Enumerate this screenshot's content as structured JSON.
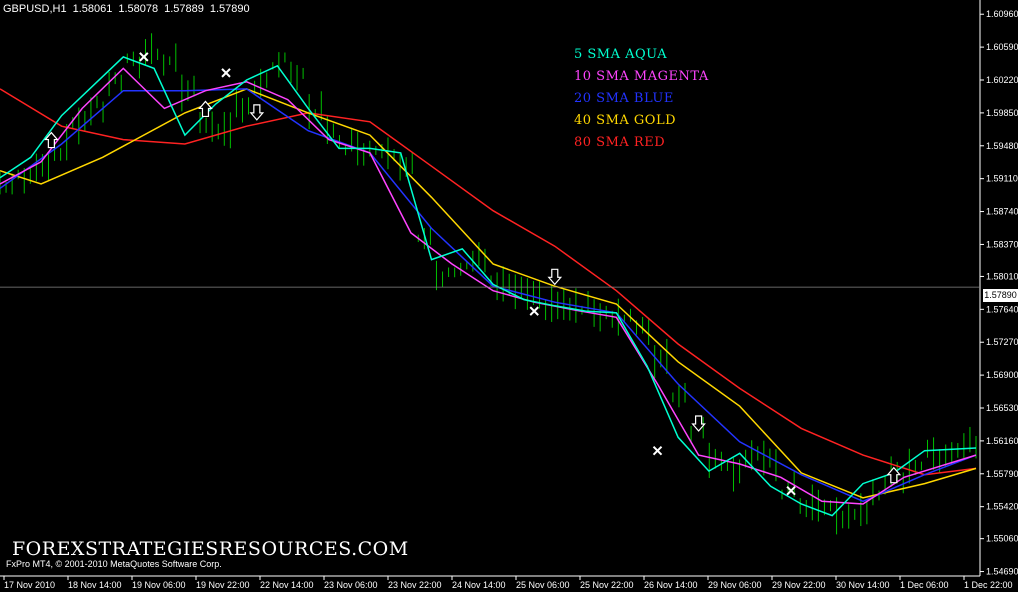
{
  "header": {
    "symbol": "GBPUSD,H1",
    "open": "1.58061",
    "high": "1.58078",
    "low": "1.57889",
    "close": "1.57890"
  },
  "legend": [
    {
      "label": "5 SMA AQUA",
      "color": "#00ffd0"
    },
    {
      "label": "10 SMA MAGENTA",
      "color": "#ff44ff"
    },
    {
      "label": "20 SMA BLUE",
      "color": "#2233ff"
    },
    {
      "label": "40 SMA GOLD",
      "color": "#ffd700"
    },
    {
      "label": "80 SMA RED",
      "color": "#ff2222"
    }
  ],
  "watermark": "FOREXSTRATEGIESRESOURCES.COM",
  "copyright": "FxPro MT4, © 2001-2010 MetaQuotes Software Corp.",
  "current_price_tag": "1.57890",
  "colors": {
    "background": "#000000",
    "bars": "#00c000",
    "axis": "#ffffff",
    "grid": "#555555"
  },
  "chart_data": {
    "type": "line",
    "price_axis": [
      "1.60960",
      "1.60590",
      "1.60220",
      "1.59850",
      "1.59480",
      "1.59110",
      "1.58740",
      "1.58370",
      "1.58010",
      "1.57640",
      "1.57270",
      "1.56900",
      "1.56530",
      "1.56160",
      "1.55790",
      "1.55420",
      "1.55060",
      "1.54690"
    ],
    "time_axis": [
      "17 Nov 2010",
      "18 Nov 14:00",
      "19 Nov 06:00",
      "19 Nov 22:00",
      "22 Nov 14:00",
      "23 Nov 06:00",
      "23 Nov 22:00",
      "24 Nov 14:00",
      "25 Nov 06:00",
      "25 Nov 22:00",
      "26 Nov 14:00",
      "29 Nov 06:00",
      "29 Nov 22:00",
      "30 Nov 14:00",
      "1 Dec 06:00",
      "1 Dec 22:00"
    ],
    "ylim": [
      1.5464,
      1.6112
    ],
    "series": [
      {
        "name": "5 SMA AQUA",
        "color": "#00ffd0",
        "x": [
          0,
          3,
          6,
          9,
          12,
          15,
          18,
          21,
          24,
          27,
          30,
          33,
          36,
          39,
          42,
          45,
          48,
          51,
          54,
          57,
          60,
          63,
          66,
          69,
          72,
          75,
          78,
          81,
          84,
          87,
          90,
          95
        ],
        "y": [
          1.5912,
          1.5935,
          1.5982,
          1.6015,
          1.6048,
          1.6035,
          1.596,
          1.5995,
          1.6022,
          1.6038,
          1.599,
          1.5945,
          1.5945,
          1.594,
          1.582,
          1.5832,
          1.5792,
          1.5775,
          1.5768,
          1.5762,
          1.576,
          1.57,
          1.562,
          1.5582,
          1.5602,
          1.5565,
          1.5545,
          1.5532,
          1.5568,
          1.558,
          1.5605,
          1.5608
        ]
      },
      {
        "name": "10 SMA MAGENTA",
        "color": "#ff44ff",
        "x": [
          0,
          4,
          8,
          12,
          16,
          20,
          24,
          28,
          32,
          36,
          40,
          44,
          48,
          52,
          56,
          60,
          64,
          68,
          72,
          76,
          80,
          84,
          88,
          95
        ],
        "y": [
          1.5905,
          1.593,
          1.599,
          1.6035,
          1.599,
          1.601,
          1.602,
          1.6,
          1.5955,
          1.594,
          1.585,
          1.5815,
          1.5785,
          1.5772,
          1.5763,
          1.5755,
          1.568,
          1.56,
          1.559,
          1.5575,
          1.5548,
          1.5545,
          1.5575,
          1.56
        ]
      },
      {
        "name": "20 SMA BLUE",
        "color": "#2233ff",
        "x": [
          0,
          6,
          12,
          18,
          24,
          30,
          36,
          42,
          48,
          54,
          60,
          66,
          72,
          78,
          84,
          90,
          95
        ],
        "y": [
          1.59,
          1.595,
          1.601,
          1.601,
          1.6012,
          1.5965,
          1.594,
          1.5855,
          1.579,
          1.5772,
          1.576,
          1.568,
          1.5615,
          1.5578,
          1.5548,
          1.5578,
          1.56
        ]
      },
      {
        "name": "40 SMA GOLD",
        "color": "#ffd700",
        "x": [
          0,
          4,
          10,
          18,
          24,
          30,
          36,
          42,
          48,
          54,
          60,
          66,
          72,
          78,
          84,
          90,
          95
        ],
        "y": [
          1.592,
          1.5905,
          1.5935,
          1.5985,
          1.6012,
          1.5985,
          1.596,
          1.589,
          1.5815,
          1.579,
          1.577,
          1.5705,
          1.5655,
          1.558,
          1.5552,
          1.5568,
          1.5585
        ]
      },
      {
        "name": "80 SMA RED",
        "color": "#ff2222",
        "x": [
          0,
          6,
          12,
          18,
          24,
          30,
          36,
          42,
          48,
          54,
          60,
          66,
          72,
          78,
          84,
          90,
          95
        ],
        "y": [
          1.6012,
          1.597,
          1.5955,
          1.595,
          1.597,
          1.5985,
          1.5975,
          1.5925,
          1.5875,
          1.5835,
          1.5785,
          1.5725,
          1.5675,
          1.563,
          1.56,
          1.5578,
          1.5585
        ]
      }
    ],
    "bars_close": [
      1.5905,
      1.591,
      1.593,
      1.5945,
      1.5975,
      1.599,
      1.602,
      1.604,
      1.6055,
      1.6045,
      1.601,
      1.5975,
      1.596,
      1.5995,
      1.6015,
      1.604,
      1.6025,
      1.599,
      1.596,
      1.595,
      1.5945,
      1.5945,
      1.593,
      1.584,
      1.58,
      1.5812,
      1.582,
      1.579,
      1.5785,
      1.5775,
      1.577,
      1.5765,
      1.5765,
      1.576,
      1.5755,
      1.574,
      1.571,
      1.567,
      1.563,
      1.56,
      1.5585,
      1.56,
      1.559,
      1.556,
      1.5545,
      1.554,
      1.553,
      1.5535,
      1.556,
      1.5575,
      1.559,
      1.56,
      1.5605,
      1.5615
    ],
    "arrows_up": [
      {
        "x": 5,
        "y": 1.5955
      },
      {
        "x": 20,
        "y": 1.599
      },
      {
        "x": 87,
        "y": 1.5578
      }
    ],
    "arrows_down": [
      {
        "x": 25,
        "y": 1.5985
      },
      {
        "x": 54,
        "y": 1.58
      },
      {
        "x": 68,
        "y": 1.5635
      }
    ],
    "crosses": [
      {
        "x": 14,
        "y": 1.6048
      },
      {
        "x": 22,
        "y": 1.603
      },
      {
        "x": 52,
        "y": 1.5762
      },
      {
        "x": 64,
        "y": 1.5605
      },
      {
        "x": 77,
        "y": 1.556
      }
    ]
  }
}
